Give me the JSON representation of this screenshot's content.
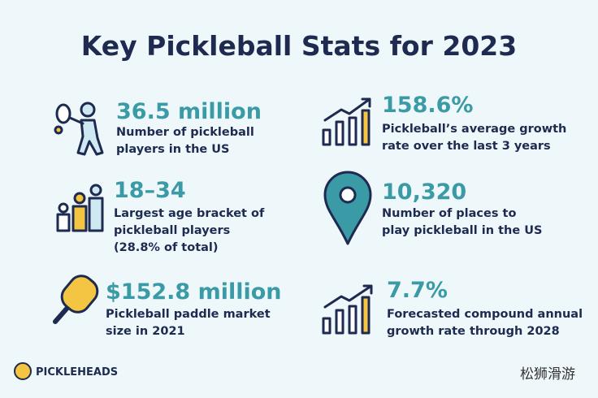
{
  "header": {
    "title": "Key Pickleball Stats for 2023"
  },
  "stats": [
    {
      "value": "36.5 million",
      "lines": [
        "Number of pickleball",
        "players in the US"
      ]
    },
    {
      "value": "158.6%",
      "lines": [
        "Pickleball’s average growth",
        "rate over the last 3 years"
      ]
    },
    {
      "value": "18–34",
      "lines": [
        "Largest age bracket of",
        "pickleball players",
        "(28.8% of total)"
      ]
    },
    {
      "value": "10,320",
      "lines": [
        "Number of places to",
        "play pickleball in the US"
      ]
    },
    {
      "value": "$152.8 million",
      "lines": [
        "Pickleball paddle market",
        "size in 2021"
      ]
    },
    {
      "value": "7.7%",
      "lines": [
        "Forecasted compound annual",
        "growth rate through 2028"
      ]
    }
  ],
  "footer": {
    "logo": "PICKLEHEADS",
    "watermark": "松狮滑游"
  }
}
